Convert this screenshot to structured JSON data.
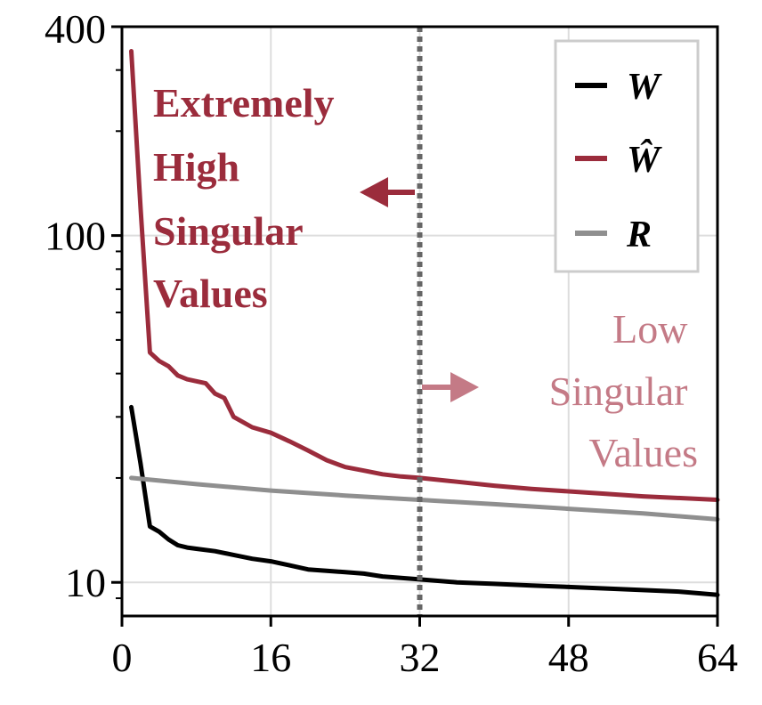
{
  "chart_data": {
    "type": "line",
    "xlabel": "",
    "ylabel": "",
    "xlim": [
      0,
      64
    ],
    "ylim": [
      8,
      400
    ],
    "yscale": "log",
    "xticks": [
      0,
      16,
      32,
      48,
      64
    ],
    "xtick_labels": [
      "0",
      "16",
      "32",
      "48",
      "64"
    ],
    "yticks": [
      10,
      100,
      400
    ],
    "ytick_labels": [
      "10",
      "100",
      "400"
    ],
    "grid": true,
    "legend_position": "top-right",
    "vline": {
      "x": 32,
      "color": "#666666",
      "style": "dotted"
    },
    "series": [
      {
        "name": "W",
        "color": "#000000",
        "x": [
          1,
          2,
          3,
          4,
          5,
          6,
          7,
          8,
          10,
          12,
          14,
          16,
          18,
          20,
          22,
          24,
          26,
          28,
          30,
          32,
          36,
          40,
          44,
          48,
          52,
          56,
          60,
          64
        ],
        "y": [
          32,
          22,
          14.5,
          14,
          13.3,
          12.8,
          12.6,
          12.5,
          12.3,
          12,
          11.7,
          11.5,
          11.2,
          10.9,
          10.8,
          10.7,
          10.6,
          10.4,
          10.3,
          10.2,
          10.0,
          9.9,
          9.8,
          9.7,
          9.6,
          9.5,
          9.4,
          9.2
        ]
      },
      {
        "name": "Ŵ",
        "color": "#9b2c3c",
        "x": [
          1,
          2,
          3,
          4,
          5,
          6,
          7,
          8,
          9,
          10,
          11,
          12,
          14,
          16,
          18,
          20,
          22,
          24,
          26,
          28,
          30,
          32,
          36,
          40,
          44,
          48,
          52,
          56,
          60,
          64
        ],
        "y": [
          340,
          120,
          46,
          43.5,
          42,
          39.5,
          38.5,
          38,
          37.5,
          35,
          34,
          30,
          28,
          27,
          25.5,
          24,
          22.5,
          21.5,
          21,
          20.5,
          20.2,
          20,
          19.5,
          19,
          18.6,
          18.3,
          18,
          17.7,
          17.5,
          17.3
        ]
      },
      {
        "name": "R",
        "color": "#8f8f8f",
        "x": [
          1,
          8,
          16,
          24,
          32,
          40,
          48,
          56,
          64
        ],
        "y": [
          20,
          19.2,
          18.4,
          17.8,
          17.3,
          16.8,
          16.3,
          15.8,
          15.2
        ]
      }
    ],
    "annotations": [
      {
        "lines": [
          "Extremely",
          "High",
          "Singular",
          "Values"
        ],
        "color": "#9b2c3c",
        "weight": "bold"
      },
      {
        "lines": [
          "Low",
          "Singular",
          "Values"
        ],
        "color": "#c47a86",
        "weight": "normal"
      }
    ]
  }
}
